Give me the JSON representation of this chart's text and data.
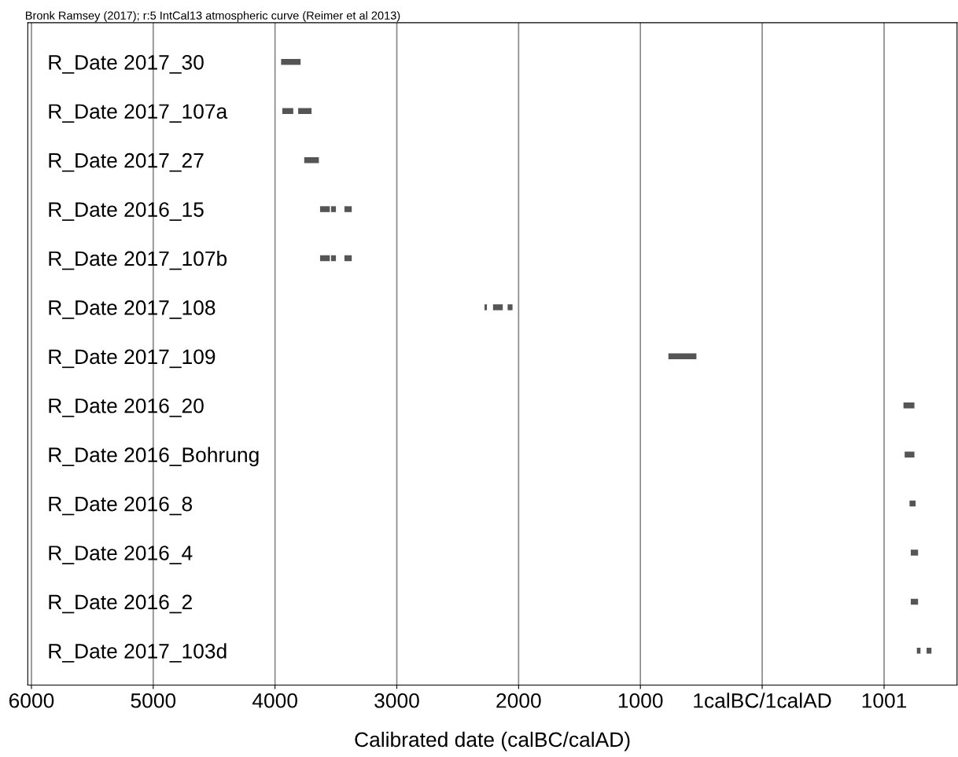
{
  "chart_data": {
    "type": "bar",
    "orientation": "horizontal",
    "title": "Bronk Ramsey (2017); r:5 IntCal13 atmospheric curve (Reimer et al 2013)",
    "xlabel": "Calibrated date (calBC/calAD)",
    "categories": [
      "R_Date 2017_30",
      "R_Date 2017_107a",
      "R_Date 2017_27",
      "R_Date 2016_15",
      "R_Date 2017_107b",
      "R_Date 2017_108",
      "R_Date 2017_109",
      "R_Date 2016_20",
      "R_Date 2016_Bohrung",
      "R_Date 2016_8",
      "R_Date 2016_4",
      "R_Date 2016_2",
      "R_Date 2017_103d"
    ],
    "series": [
      {
        "color": "#555555",
        "base": [
          -3950,
          -3940,
          -3760,
          -3630,
          -3630,
          -2280,
          -770,
          1160,
          1170,
          1210,
          1220,
          1220,
          1270
        ],
        "values": [
          160,
          90,
          120,
          80,
          80,
          20,
          230,
          90,
          80,
          50,
          60,
          60,
          30
        ]
      },
      {
        "color": "#555555",
        "base": [
          null,
          -3810,
          null,
          -3540,
          -3540,
          -2210,
          null,
          null,
          null,
          null,
          null,
          null,
          1350
        ],
        "values": [
          null,
          110,
          null,
          40,
          40,
          80,
          null,
          null,
          null,
          null,
          null,
          null,
          40
        ]
      },
      {
        "color": "#555555",
        "base": [
          null,
          null,
          null,
          -3430,
          -3430,
          -2090,
          null,
          null,
          null,
          null,
          null,
          null,
          null
        ],
        "values": [
          null,
          null,
          null,
          60,
          60,
          40,
          null,
          null,
          null,
          null,
          null,
          null,
          null
        ]
      }
    ],
    "xlim": [
      -6030,
      1600
    ],
    "xticks": [
      {
        "value": -6000,
        "label": "6000"
      },
      {
        "value": -5000,
        "label": "5000"
      },
      {
        "value": -4000,
        "label": "4000"
      },
      {
        "value": -3000,
        "label": "3000"
      },
      {
        "value": -2000,
        "label": "2000"
      },
      {
        "value": -1000,
        "label": "1000"
      },
      {
        "value": 0,
        "label": "1calBC/1calAD"
      },
      1001
    ],
    "grid": "x"
  }
}
